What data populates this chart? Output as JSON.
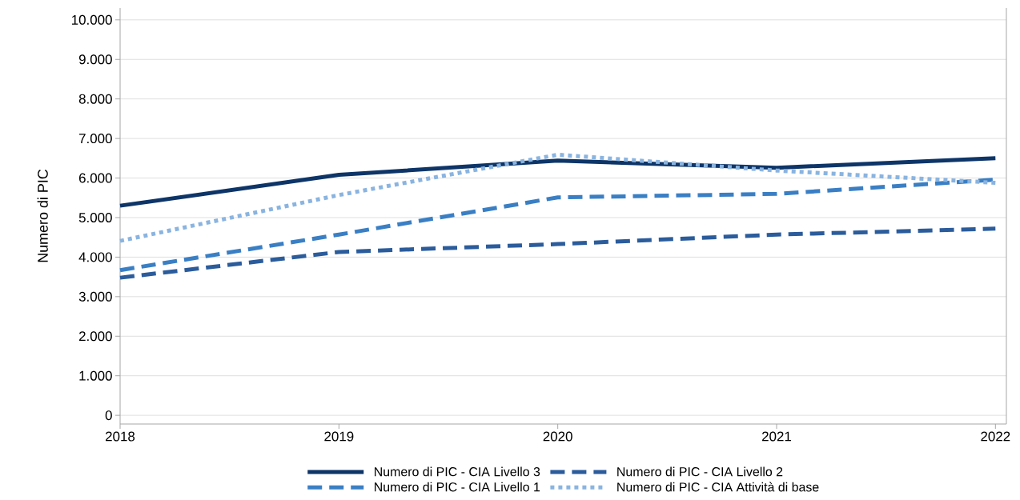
{
  "chart_data": {
    "type": "line",
    "ylabel": "Numero di PIC",
    "x": [
      2018,
      2019,
      2020,
      2021,
      2022
    ],
    "xlim": [
      2018,
      2022.05
    ],
    "xticks": [
      {
        "value": 2018,
        "label": "2018"
      },
      {
        "value": 2019,
        "label": "2019"
      },
      {
        "value": 2020,
        "label": "2020"
      },
      {
        "value": 2021,
        "label": "2021"
      },
      {
        "value": 2022,
        "label": "2022"
      }
    ],
    "ylim": [
      -220,
      10300
    ],
    "yticks": [
      0,
      {
        "value": 1000,
        "label": "1.000"
      },
      {
        "value": 2000,
        "label": "2.000"
      },
      {
        "value": 3000,
        "label": "3.000"
      },
      {
        "value": 4000,
        "label": "4.000"
      },
      {
        "value": 5000,
        "label": "5.000"
      },
      {
        "value": 6000,
        "label": "6.000"
      },
      {
        "value": 7000,
        "label": "7.000"
      },
      {
        "value": 8000,
        "label": "8.000"
      },
      {
        "value": 9000,
        "label": "9.000"
      },
      {
        "value": 10000,
        "label": "10.000"
      }
    ],
    "grid": "y",
    "legend": "bottom",
    "marker": "none",
    "series": [
      {
        "name": "Numero di PIC - CIA Livello 3",
        "color": "#0e3568",
        "line_style": "solid",
        "values": [
          5300,
          6080,
          6440,
          6260,
          6500
        ]
      },
      {
        "name": "Numero di PIC - CIA Livello 2",
        "color": "#2b5c9b",
        "line_style": "dashed",
        "values": [
          3480,
          4130,
          4330,
          4570,
          4720
        ]
      },
      {
        "name": "Numero di PIC - CIA Livello 1",
        "color": "#3a7fc4",
        "line_style": "dashed",
        "values": [
          3670,
          4570,
          5510,
          5600,
          5960
        ]
      },
      {
        "name": "Numero di PIC - CIA Attività di base",
        "color": "#8ab4e0",
        "line_style": "dotted",
        "values": [
          4410,
          5570,
          6590,
          6190,
          5880
        ]
      }
    ]
  }
}
